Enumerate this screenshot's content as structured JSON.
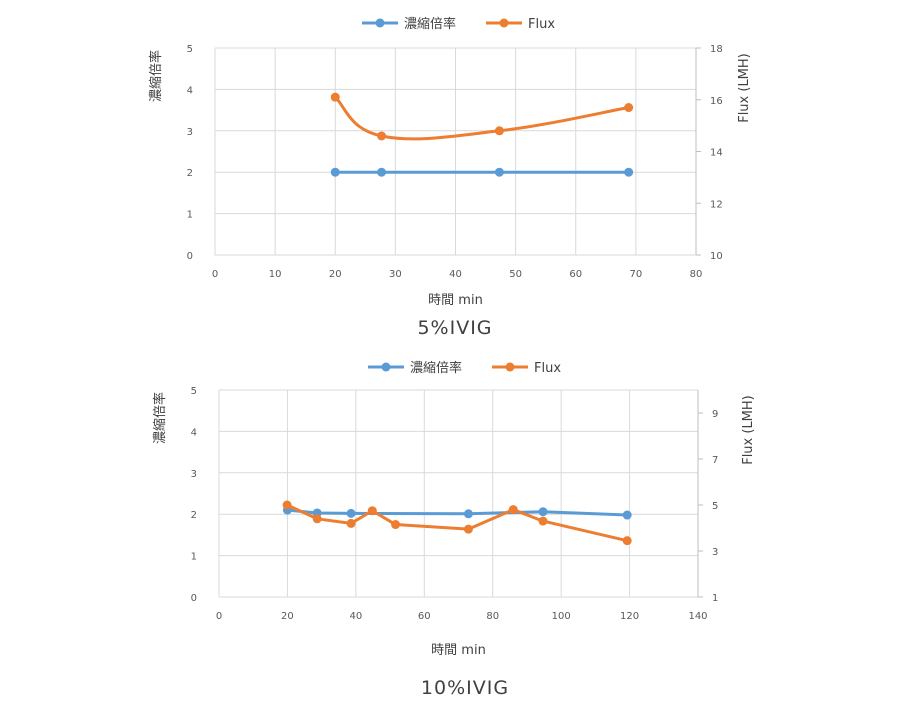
{
  "colors": {
    "blue": "#5B9BD5",
    "orange": "#ED7D31",
    "grid": "#D9D9D9",
    "text": "#404040"
  },
  "chart_data": [
    {
      "type": "line",
      "caption": "5%IVIG",
      "legend": [
        "濃縮倍率",
        "Flux"
      ],
      "legend_position": "top",
      "xlabel": "時間 min",
      "ylabel_left": "濃縮倍率",
      "ylabel_right": "Flux (LMH)",
      "xlim": [
        0,
        80
      ],
      "x_ticks": [
        0,
        10,
        20,
        30,
        40,
        50,
        60,
        70,
        80
      ],
      "ylim_left": [
        0,
        5
      ],
      "y_ticks_left": [
        0,
        1,
        2,
        3,
        4,
        5
      ],
      "ylim_right": [
        10,
        18
      ],
      "y_ticks_right": [
        10,
        12,
        14,
        16,
        18
      ],
      "grid": true,
      "series": [
        {
          "name": "濃縮倍率",
          "axis": "left",
          "color": "#5B9BD5",
          "smooth": false,
          "points": [
            [
              20,
              2.0
            ],
            [
              27.7,
              2.0
            ],
            [
              47.3,
              2.0
            ],
            [
              68.8,
              2.0
            ]
          ]
        },
        {
          "name": "Flux",
          "axis": "right",
          "color": "#ED7D31",
          "smooth": true,
          "points": [
            [
              20,
              16.1
            ],
            [
              27.7,
              14.6
            ],
            [
              47.3,
              14.8
            ],
            [
              68.8,
              15.7
            ]
          ]
        }
      ]
    },
    {
      "type": "line",
      "caption": "10%IVIG",
      "legend": [
        "濃縮倍率",
        "Flux"
      ],
      "legend_position": "top",
      "xlabel": "時間 min",
      "ylabel_left": "濃縮倍率",
      "ylabel_right": "Flux (LMH)",
      "xlim": [
        0,
        140
      ],
      "x_ticks": [
        0,
        20,
        40,
        60,
        80,
        100,
        120,
        140
      ],
      "ylim_left": [
        0,
        5
      ],
      "y_ticks_left": [
        0,
        1,
        2,
        3,
        4,
        5
      ],
      "ylim_right": [
        1,
        10
      ],
      "y_ticks_right": [
        1,
        3,
        5,
        7,
        9
      ],
      "grid": true,
      "series": [
        {
          "name": "濃縮倍率",
          "axis": "left",
          "color": "#5B9BD5",
          "smooth": false,
          "points": [
            [
              20,
              2.1
            ],
            [
              28.7,
              2.03
            ],
            [
              38.6,
              2.02
            ],
            [
              72.9,
              2.01
            ],
            [
              94.7,
              2.06
            ],
            [
              119.3,
              1.98
            ]
          ]
        },
        {
          "name": "Flux",
          "axis": "right",
          "color": "#ED7D31",
          "smooth": false,
          "points": [
            [
              19.9,
              5.0
            ],
            [
              28.7,
              4.4
            ],
            [
              38.6,
              4.2
            ],
            [
              44.8,
              4.75
            ],
            [
              51.6,
              4.15
            ],
            [
              72.9,
              3.95
            ],
            [
              86.0,
              4.8
            ],
            [
              94.7,
              4.3
            ],
            [
              119.3,
              3.45
            ]
          ]
        }
      ]
    }
  ]
}
